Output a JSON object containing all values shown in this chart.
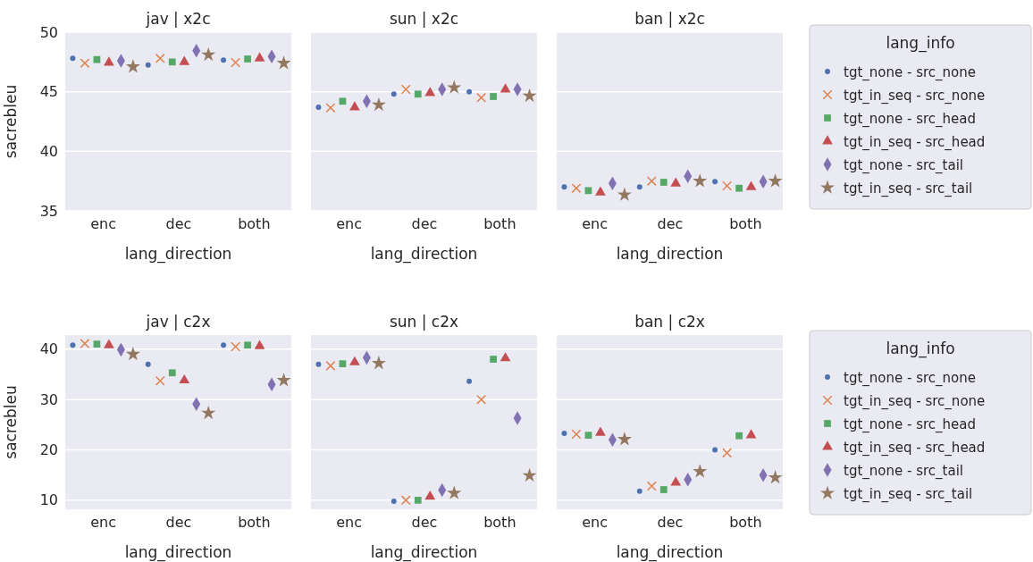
{
  "chart_data": [
    {
      "type": "scatter",
      "title": "jav | x2c",
      "xlabel": "lang_direction",
      "ylabel": "sacrebleu",
      "categories": [
        "enc",
        "dec",
        "both"
      ],
      "ylim": [
        35,
        50
      ],
      "yticks": [
        35,
        40,
        45,
        50
      ],
      "grid": "y",
      "series": [
        {
          "color": "#4c72b0",
          "marker": "circle",
          "values": [
            47.8,
            47.25,
            47.65
          ]
        },
        {
          "color": "#dd8452",
          "marker": "cross",
          "values": [
            47.4,
            47.8,
            47.45
          ]
        },
        {
          "color": "#55a868",
          "marker": "square",
          "values": [
            47.7,
            47.5,
            47.75
          ]
        },
        {
          "color": "#c44e52",
          "marker": "triangle",
          "values": [
            47.45,
            47.5,
            47.8
          ]
        },
        {
          "color": "#8172b3",
          "marker": "diamond",
          "values": [
            47.6,
            48.45,
            47.95
          ]
        },
        {
          "color": "#937860",
          "marker": "star",
          "values": [
            47.1,
            48.1,
            47.4
          ]
        }
      ]
    },
    {
      "type": "scatter",
      "title": "sun | x2c",
      "xlabel": "lang_direction",
      "categories": [
        "enc",
        "dec",
        "both"
      ],
      "ylim": [
        35,
        50
      ],
      "yticks": [
        35,
        40,
        45,
        50
      ],
      "grid": "y",
      "tick_labels": "x",
      "series": [
        {
          "color": "#4c72b0",
          "marker": "circle",
          "values": [
            43.7,
            44.8,
            45.0
          ]
        },
        {
          "color": "#dd8452",
          "marker": "cross",
          "values": [
            43.65,
            45.2,
            44.5
          ]
        },
        {
          "color": "#55a868",
          "marker": "square",
          "values": [
            44.2,
            44.8,
            44.6
          ]
        },
        {
          "color": "#c44e52",
          "marker": "triangle",
          "values": [
            43.7,
            44.9,
            45.2
          ]
        },
        {
          "color": "#8172b3",
          "marker": "diamond",
          "values": [
            44.2,
            45.2,
            45.2
          ]
        },
        {
          "color": "#937860",
          "marker": "star",
          "values": [
            43.9,
            45.35,
            44.65
          ]
        }
      ]
    },
    {
      "type": "scatter",
      "title": "ban | x2c",
      "xlabel": "lang_direction",
      "categories": [
        "enc",
        "dec",
        "both"
      ],
      "ylim": [
        35,
        50
      ],
      "yticks": [
        35,
        40,
        45,
        50
      ],
      "grid": "y",
      "tick_labels": "x",
      "legend": "right",
      "legend_title": "lang_info",
      "series": [
        {
          "name": "tgt_none - src_none",
          "color": "#4c72b0",
          "marker": "circle",
          "values": [
            37.0,
            37.0,
            37.45
          ]
        },
        {
          "name": "tgt_in_seq - src_none",
          "color": "#dd8452",
          "marker": "cross",
          "values": [
            36.9,
            37.5,
            37.1
          ]
        },
        {
          "name": "tgt_none - src_head",
          "color": "#55a868",
          "marker": "square",
          "values": [
            36.7,
            37.4,
            36.9
          ]
        },
        {
          "name": "tgt_in_seq - src_head",
          "color": "#c44e52",
          "marker": "triangle",
          "values": [
            36.55,
            37.3,
            37.0
          ]
        },
        {
          "name": "tgt_none - src_tail",
          "color": "#8172b3",
          "marker": "diamond",
          "values": [
            37.3,
            37.9,
            37.45
          ]
        },
        {
          "name": "tgt_in_seq - src_tail",
          "color": "#937860",
          "marker": "star",
          "values": [
            36.35,
            37.5,
            37.5
          ]
        }
      ]
    },
    {
      "type": "scatter",
      "title": "jav | c2x",
      "xlabel": "lang_direction",
      "ylabel": "sacrebleu",
      "categories": [
        "enc",
        "dec",
        "both"
      ],
      "ylim": [
        8.2,
        42.8
      ],
      "yticks": [
        10,
        20,
        30,
        40
      ],
      "grid": "y",
      "series": [
        {
          "color": "#4c72b0",
          "marker": "circle",
          "values": [
            40.8,
            37.0,
            40.8
          ]
        },
        {
          "color": "#dd8452",
          "marker": "cross",
          "values": [
            41.1,
            33.7,
            40.5
          ]
        },
        {
          "color": "#55a868",
          "marker": "square",
          "values": [
            41.0,
            35.3,
            40.8
          ]
        },
        {
          "color": "#c44e52",
          "marker": "triangle",
          "values": [
            40.8,
            33.8,
            40.6
          ]
        },
        {
          "color": "#8172b3",
          "marker": "diamond",
          "values": [
            39.9,
            29.1,
            33.0
          ]
        },
        {
          "color": "#937860",
          "marker": "star",
          "values": [
            39.0,
            27.3,
            33.8
          ]
        }
      ]
    },
    {
      "type": "scatter",
      "title": "sun | c2x",
      "xlabel": "lang_direction",
      "categories": [
        "enc",
        "dec",
        "both"
      ],
      "ylim": [
        8.2,
        42.8
      ],
      "yticks": [
        10,
        20,
        30,
        40
      ],
      "grid": "y",
      "tick_labels": "x",
      "series": [
        {
          "color": "#4c72b0",
          "marker": "circle",
          "values": [
            37.0,
            9.8,
            33.6
          ]
        },
        {
          "color": "#dd8452",
          "marker": "cross",
          "values": [
            36.7,
            10.0,
            30.0
          ]
        },
        {
          "color": "#55a868",
          "marker": "square",
          "values": [
            37.1,
            10.0,
            38.0
          ]
        },
        {
          "color": "#c44e52",
          "marker": "triangle",
          "values": [
            37.4,
            10.7,
            38.2
          ]
        },
        {
          "color": "#8172b3",
          "marker": "diamond",
          "values": [
            38.3,
            12.0,
            26.3
          ]
        },
        {
          "color": "#937860",
          "marker": "star",
          "values": [
            37.2,
            11.4,
            14.9
          ]
        }
      ]
    },
    {
      "type": "scatter",
      "title": "ban | c2x",
      "xlabel": "lang_direction",
      "categories": [
        "enc",
        "dec",
        "both"
      ],
      "ylim": [
        8.2,
        42.8
      ],
      "yticks": [
        10,
        20,
        30,
        40
      ],
      "grid": "y",
      "tick_labels": "x",
      "legend": "right",
      "legend_title": "lang_info",
      "series": [
        {
          "name": "tgt_none - src_none",
          "color": "#4c72b0",
          "marker": "circle",
          "values": [
            23.3,
            11.8,
            20.0
          ]
        },
        {
          "name": "tgt_in_seq - src_none",
          "color": "#dd8452",
          "marker": "cross",
          "values": [
            23.1,
            12.8,
            19.4
          ]
        },
        {
          "name": "tgt_none - src_head",
          "color": "#55a868",
          "marker": "square",
          "values": [
            22.9,
            12.1,
            22.8
          ]
        },
        {
          "name": "tgt_in_seq - src_head",
          "color": "#c44e52",
          "marker": "triangle",
          "values": [
            23.4,
            13.5,
            22.9
          ]
        },
        {
          "name": "tgt_none - src_tail",
          "color": "#8172b3",
          "marker": "diamond",
          "values": [
            22.0,
            14.1,
            15.0
          ]
        },
        {
          "name": "tgt_in_seq - src_tail",
          "color": "#937860",
          "marker": "star",
          "values": [
            22.1,
            15.7,
            14.5
          ]
        }
      ]
    }
  ]
}
